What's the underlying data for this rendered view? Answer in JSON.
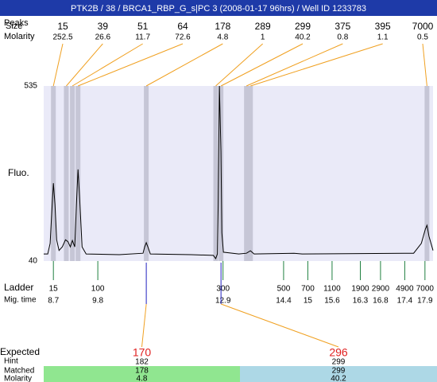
{
  "chart_data": {
    "type": "electropherogram",
    "title": "PTK2B / 38 / BRCA1_RBP_G_s|PC 3 (2008-01-17 96hrs) / Well ID 1233783",
    "header_labels": [
      "Peaks",
      "Size",
      "Molarity"
    ],
    "ylabel": "Fluo.",
    "ylim": [
      40,
      535
    ],
    "yticks": [
      40,
      535
    ],
    "xlim": [
      8.46,
      18.1
    ],
    "trace": {
      "color": "#000000",
      "x": [
        8.46,
        8.56,
        8.62,
        8.66,
        8.7,
        8.74,
        8.78,
        8.84,
        8.92,
        9.0,
        9.06,
        9.12,
        9.17,
        9.23,
        9.27,
        9.31,
        9.35,
        9.41,
        9.51,
        10.33,
        10.92,
        10.96,
        11.0,
        11.04,
        11.1,
        12.11,
        12.66,
        12.72,
        12.76,
        12.78,
        12.81,
        12.85,
        12.87,
        12.91,
        13.29,
        13.48,
        13.58,
        13.67,
        14.66,
        14.86,
        17.62,
        17.81,
        17.91,
        17.95,
        18.0,
        18.1
      ],
      "y": [
        60,
        60,
        90,
        180,
        260,
        200,
        100,
        70,
        80,
        100,
        95,
        80,
        98,
        80,
        200,
        299,
        220,
        80,
        60,
        58,
        62,
        80,
        92,
        80,
        60,
        58,
        56,
        47,
        60,
        200,
        535,
        350,
        120,
        65,
        60,
        62,
        69,
        60,
        62,
        60,
        62,
        90,
        130,
        141,
        110,
        70
      ]
    },
    "peaks": {
      "size": [
        15,
        39,
        51,
        64,
        178,
        289,
        299,
        375,
        395,
        7000
      ],
      "molarity": [
        252.5,
        26.6,
        11.7,
        72.6,
        4.8,
        1,
        40.2,
        0.8,
        1.1,
        0.5
      ],
      "time": [
        8.7,
        9.02,
        9.17,
        9.31,
        11.0,
        12.72,
        12.85,
        13.48,
        13.58,
        17.95
      ]
    },
    "ladder": {
      "label": "Ladder",
      "time_label": "Mig. time",
      "sizes": [
        15,
        100,
        300,
        500,
        700,
        1100,
        1900,
        2900,
        4900,
        7000
      ],
      "times": [
        8.7,
        9.8,
        12.9,
        14.4,
        15,
        15.6,
        16.3,
        16.8,
        17.4,
        17.9
      ]
    },
    "expected": {
      "labels": [
        "Expected",
        "Hint",
        "Matched",
        "Molarity"
      ],
      "expected": [
        170,
        296
      ],
      "hint": [
        182,
        299
      ],
      "matched": [
        178,
        299
      ],
      "molarity": [
        4.8,
        40.2
      ],
      "time": [
        11.0,
        12.85
      ]
    }
  }
}
